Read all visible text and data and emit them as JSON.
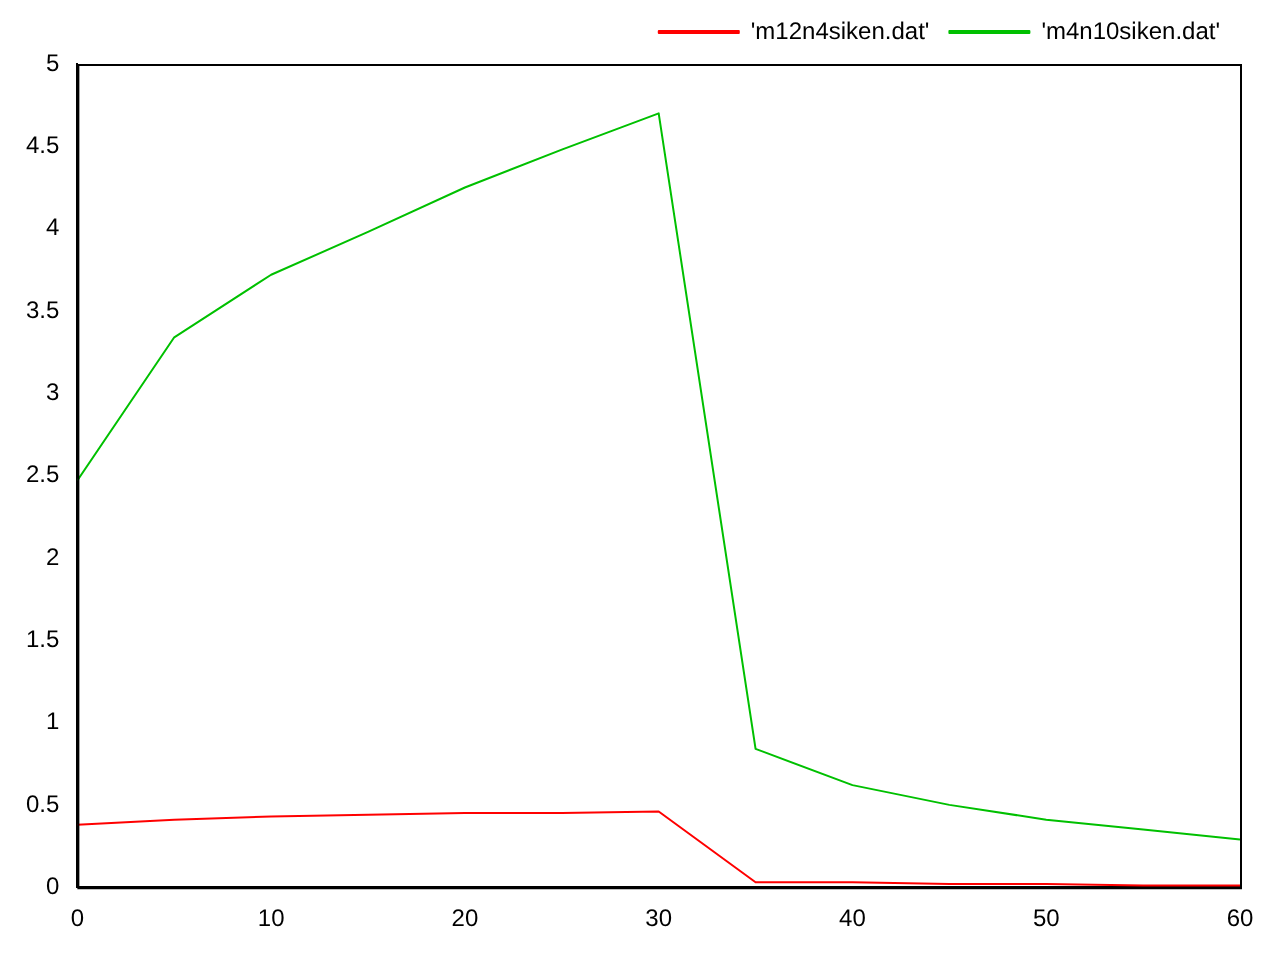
{
  "chart_data": {
    "type": "line",
    "x": [
      0,
      5,
      10,
      15,
      20,
      25,
      30,
      35,
      40,
      45,
      50,
      55,
      60
    ],
    "series": [
      {
        "name": "'m12n4siken.dat'",
        "color": "#ff0000",
        "values": [
          0.38,
          0.41,
          0.43,
          0.44,
          0.45,
          0.45,
          0.46,
          0.03,
          0.03,
          0.02,
          0.02,
          0.01,
          0.01
        ]
      },
      {
        "name": "'m4n10siken.dat'",
        "color": "#00c000",
        "values": [
          2.47,
          3.34,
          3.72,
          3.98,
          4.25,
          4.48,
          4.7,
          0.84,
          0.62,
          0.5,
          0.41,
          0.35,
          0.29
        ]
      }
    ],
    "xlim": [
      0,
      60
    ],
    "xticks": [
      0,
      10,
      20,
      30,
      40,
      50,
      60
    ],
    "ylim": [
      0,
      5
    ],
    "yticks": [
      0,
      0.5,
      1,
      1.5,
      2,
      2.5,
      3,
      3.5,
      4,
      4.5,
      5
    ],
    "grid": false,
    "legend": "top right",
    "marker": "none",
    "line_style": "solid"
  }
}
